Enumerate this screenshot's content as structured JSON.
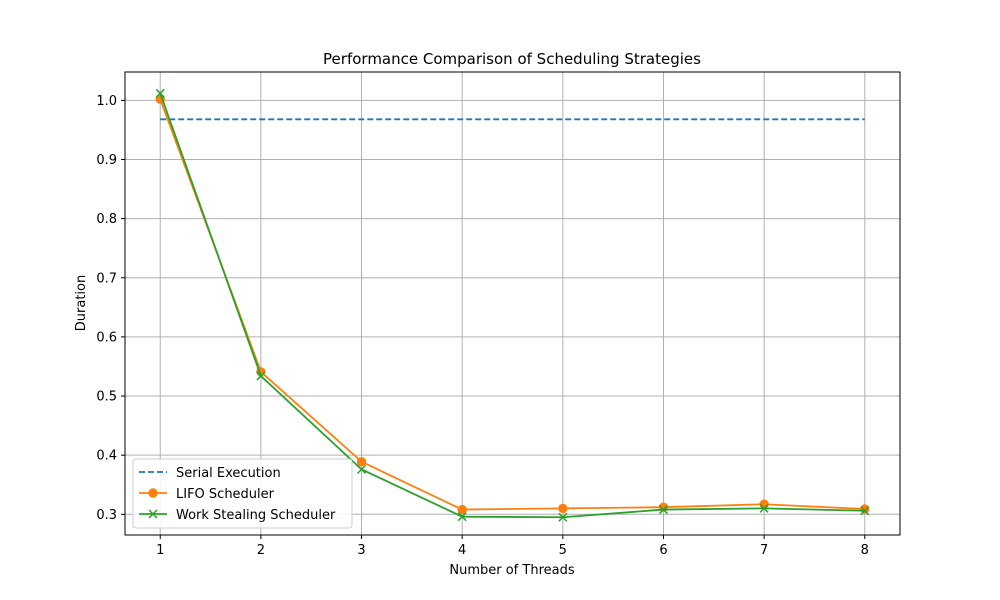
{
  "chart_data": {
    "type": "line",
    "title": "Performance Comparison of Scheduling Strategies",
    "xlabel": "Number of Threads",
    "ylabel": "Duration",
    "x": [
      1,
      2,
      3,
      4,
      5,
      6,
      7,
      8
    ],
    "xticks": [
      "1",
      "2",
      "3",
      "4",
      "5",
      "6",
      "7",
      "8"
    ],
    "yticks": [
      "0.3",
      "0.4",
      "0.5",
      "0.6",
      "0.7",
      "0.8",
      "0.9",
      "1.0"
    ],
    "xlim": [
      0.65,
      8.35
    ],
    "ylim": [
      0.265,
      1.048
    ],
    "grid": true,
    "legend_position": "lower-left",
    "series": [
      {
        "name": "Serial Execution",
        "color": "#1f77b4",
        "style": "dashed",
        "marker": "none",
        "values": [
          0.968,
          0.968,
          0.968,
          0.968,
          0.968,
          0.968,
          0.968,
          0.968
        ]
      },
      {
        "name": "LIFO Scheduler",
        "color": "#ff7f0e",
        "style": "solid",
        "marker": "circle",
        "values": [
          1.002,
          0.541,
          0.389,
          0.308,
          0.31,
          0.312,
          0.317,
          0.309
        ]
      },
      {
        "name": "Work Stealing Scheduler",
        "color": "#2ca02c",
        "style": "solid",
        "marker": "x",
        "values": [
          1.012,
          0.534,
          0.376,
          0.296,
          0.295,
          0.308,
          0.31,
          0.306
        ]
      }
    ]
  }
}
